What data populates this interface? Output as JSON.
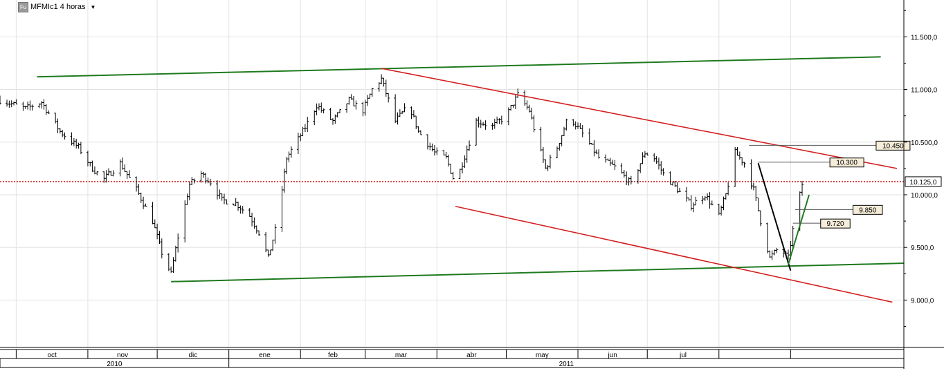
{
  "header": {
    "badge": "Fu",
    "instrument": "MFMIc1 4 horas",
    "dropdown_icon": "caret-down-icon"
  },
  "chart_data": {
    "type": "candlestick",
    "title": "",
    "xlabel": "",
    "ylabel": "",
    "grid": true,
    "ylim": [
      8550,
      11850
    ],
    "x_range": [
      "2010-09-24",
      "2011-10-20"
    ],
    "y_ticks": [
      "11.500,0",
      "11.000,0",
      "10.500,0",
      "10.000,0",
      "9.500,0",
      "9.000,0"
    ],
    "y_tick_values": [
      11500,
      11000,
      10500,
      10000,
      9500,
      9000
    ],
    "months": [
      {
        "label": "oct",
        "start": "2010-10-01",
        "end": "2010-11-01"
      },
      {
        "label": "nov",
        "start": "2010-11-01",
        "end": "2010-12-01"
      },
      {
        "label": "dic",
        "start": "2010-12-01",
        "end": "2011-01-01"
      },
      {
        "label": "ene",
        "start": "2011-01-01",
        "end": "2011-02-01"
      },
      {
        "label": "feb",
        "start": "2011-02-01",
        "end": "2011-03-01"
      },
      {
        "label": "mar",
        "start": "2011-03-01",
        "end": "2011-04-01"
      },
      {
        "label": "abr",
        "start": "2011-04-01",
        "end": "2011-05-01"
      },
      {
        "label": "may",
        "start": "2011-05-01",
        "end": "2011-06-01"
      },
      {
        "label": "jun",
        "start": "2011-06-01",
        "end": "2011-07-01"
      },
      {
        "label": "jul",
        "start": "2011-07-01",
        "end": "2011-08-01"
      },
      {
        "label": "",
        "start": "2011-08-01",
        "end": "2011-09-01"
      },
      {
        "label": "",
        "start": "2011-09-01",
        "end": "2011-10-01"
      }
    ],
    "years": [
      {
        "label": "2010",
        "start": "2010-09-24",
        "end": "2011-01-01"
      },
      {
        "label": "2011",
        "start": "2011-01-01",
        "end": "2011-10-20"
      }
    ],
    "price_path": [
      [
        "2010-09-24",
        10900
      ],
      [
        "2010-10-05",
        10820
      ],
      [
        "2010-10-12",
        10880
      ],
      [
        "2010-10-20",
        10600
      ],
      [
        "2010-10-28",
        10450
      ],
      [
        "2010-11-03",
        10250
      ],
      [
        "2010-11-08",
        10150
      ],
      [
        "2010-11-15",
        10300
      ],
      [
        "2010-11-22",
        10050
      ],
      [
        "2010-11-29",
        9750
      ],
      [
        "2010-12-03",
        9450
      ],
      [
        "2010-12-07",
        9250
      ],
      [
        "2010-12-10",
        9600
      ],
      [
        "2010-12-15",
        10100
      ],
      [
        "2010-12-20",
        10200
      ],
      [
        "2010-12-24",
        10120
      ],
      [
        "2010-12-29",
        9950
      ],
      [
        "2011-01-04",
        9920
      ],
      [
        "2011-01-10",
        9800
      ],
      [
        "2011-01-15",
        9600
      ],
      [
        "2011-01-18",
        9400
      ],
      [
        "2011-01-22",
        9750
      ],
      [
        "2011-01-26",
        10350
      ],
      [
        "2011-02-02",
        10600
      ],
      [
        "2011-02-08",
        10850
      ],
      [
        "2011-02-15",
        10700
      ],
      [
        "2011-02-22",
        10900
      ],
      [
        "2011-02-28",
        10800
      ],
      [
        "2011-03-04",
        11000
      ],
      [
        "2011-03-08",
        11100
      ],
      [
        "2011-03-14",
        10700
      ],
      [
        "2011-03-20",
        10850
      ],
      [
        "2011-03-24",
        10600
      ],
      [
        "2011-03-31",
        10400
      ],
      [
        "2011-04-05",
        10350
      ],
      [
        "2011-04-09",
        10100
      ],
      [
        "2011-04-12",
        10300
      ],
      [
        "2011-04-18",
        10700
      ],
      [
        "2011-04-25",
        10650
      ],
      [
        "2011-05-01",
        10750
      ],
      [
        "2011-05-06",
        10950
      ],
      [
        "2011-05-11",
        10800
      ],
      [
        "2011-05-14",
        10550
      ],
      [
        "2011-05-18",
        10250
      ],
      [
        "2011-05-23",
        10450
      ],
      [
        "2011-05-28",
        10750
      ],
      [
        "2011-06-04",
        10550
      ],
      [
        "2011-06-10",
        10350
      ],
      [
        "2011-06-18",
        10250
      ],
      [
        "2011-06-24",
        10100
      ],
      [
        "2011-06-30",
        10400
      ],
      [
        "2011-07-04",
        10350
      ],
      [
        "2011-07-08",
        10200
      ],
      [
        "2011-07-14",
        10050
      ],
      [
        "2011-07-20",
        9900
      ],
      [
        "2011-07-26",
        10000
      ],
      [
        "2011-08-01",
        9800
      ],
      [
        "2011-08-04",
        10000
      ],
      [
        "2011-08-08",
        10400
      ],
      [
        "2011-08-12",
        10300
      ],
      [
        "2011-08-16",
        10050
      ],
      [
        "2011-08-20",
        9650
      ],
      [
        "2011-08-23",
        9400
      ],
      [
        "2011-08-27",
        9500
      ],
      [
        "2011-08-31",
        9400
      ],
      [
        "2011-09-03",
        9800
      ],
      [
        "2011-09-06",
        10100
      ]
    ],
    "trendlines": [
      {
        "color": "#1e7a1e",
        "from": [
          "2010-10-10",
          11120
        ],
        "to": [
          "2011-10-10",
          11310
        ]
      },
      {
        "color": "#1e7a1e",
        "from": [
          "2010-12-07",
          9175
        ],
        "to": [
          "2011-10-20",
          9350
        ]
      },
      {
        "color": "#d42020",
        "from": [
          "2011-03-08",
          11200
        ],
        "to": [
          "2011-10-17",
          10250
        ]
      },
      {
        "color": "#d42020",
        "from": [
          "2011-04-09",
          9890
        ],
        "to": [
          "2011-10-15",
          8980
        ]
      },
      {
        "color": "#000000",
        "from": [
          "2011-08-18",
          10300
        ],
        "to": [
          "2011-09-01",
          9280
        ]
      },
      {
        "color": "#1e7a1e",
        "from": [
          "2011-08-31",
          9340
        ],
        "to": [
          "2011-09-09",
          10000
        ]
      }
    ],
    "reference_line": {
      "value": 10125,
      "label": "10.125,0",
      "color": "#cc0000"
    },
    "annotations": [
      {
        "label": "10.450",
        "from": [
          "2011-08-14",
          10470
        ],
        "to": [
          "2011-10-08",
          10470
        ]
      },
      {
        "label": "10.300",
        "from": [
          "2011-08-18",
          10310
        ],
        "to": [
          "2011-09-18",
          10310
        ]
      },
      {
        "label": "9.850",
        "from": [
          "2011-09-03",
          9860
        ],
        "to": [
          "2011-09-28",
          9860
        ]
      },
      {
        "label": "9.720",
        "from": [
          "2011-09-02",
          9730
        ],
        "to": [
          "2011-09-14",
          9730
        ]
      }
    ]
  }
}
